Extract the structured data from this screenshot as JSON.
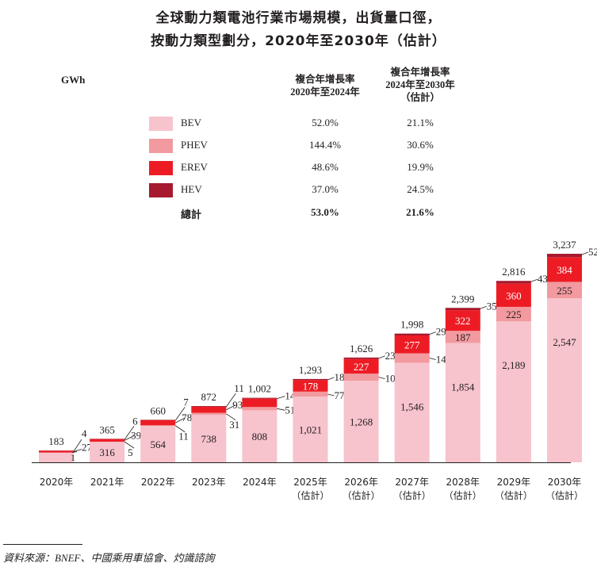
{
  "title_line1": "全球動力類電池行業市場規模，出貨量口徑，",
  "title_line2": "按動力類型劃分，2020年至2030年（估計）",
  "unit": "GWh",
  "cagr_headers": [
    [
      "複合年增長率",
      "2020年至2024年"
    ],
    [
      "複合年增長率",
      "2024年至2030年",
      "（估計）"
    ]
  ],
  "legend": [
    {
      "name": "BEV",
      "color": "#f7c3cc",
      "cagr_2020_2024": "52.0%",
      "cagr_2024_2030": "21.1%"
    },
    {
      "name": "PHEV",
      "color": "#f29a9f",
      "cagr_2020_2024": "144.4%",
      "cagr_2024_2030": "30.6%"
    },
    {
      "name": "EREV",
      "color": "#ed1c24",
      "cagr_2020_2024": "48.6%",
      "cagr_2024_2030": "19.9%"
    },
    {
      "name": "HEV",
      "color": "#a6192e",
      "cagr_2020_2024": "37.0%",
      "cagr_2024_2030": "24.5%"
    }
  ],
  "total_row": {
    "name": "總計",
    "cagr_2020_2024": "53.0%",
    "cagr_2024_2030": "21.6%"
  },
  "chart_data": {
    "type": "bar",
    "stacked": true,
    "categories": [
      "2020年",
      "2021年",
      "2022年",
      "2023年",
      "2024年",
      "2025年\n(估計)",
      "2026年\n(估計)",
      "2027年\n(估計)",
      "2028年\n(估計)",
      "2029年\n(估計)",
      "2030年\n(估計)"
    ],
    "series": [
      {
        "name": "BEV",
        "values": [
          151,
          316,
          564,
          738,
          808,
          1021,
          1268,
          1546,
          1854,
          2189,
          2547
        ]
      },
      {
        "name": "PHEV",
        "values": [
          1,
          5,
          11,
          31,
          51,
          77,
          109,
          147,
          187,
          225,
          255
        ]
      },
      {
        "name": "EREV",
        "values": [
          27,
          39,
          78,
          93,
          129,
          178,
          227,
          277,
          322,
          360,
          384
        ]
      },
      {
        "name": "HEV",
        "values": [
          4,
          6,
          7,
          11,
          14,
          18,
          23,
          29,
          35,
          43,
          52
        ]
      }
    ],
    "totals": [
      "183",
      "365",
      "660",
      "872",
      "1,002",
      "1,293",
      "1,626",
      "1,998",
      "2,399",
      "2,816",
      "3,237"
    ],
    "ylim": [
      0,
      3300
    ]
  },
  "source": "資料來源：BNEF、中國乘用車協會、灼識諮詢"
}
